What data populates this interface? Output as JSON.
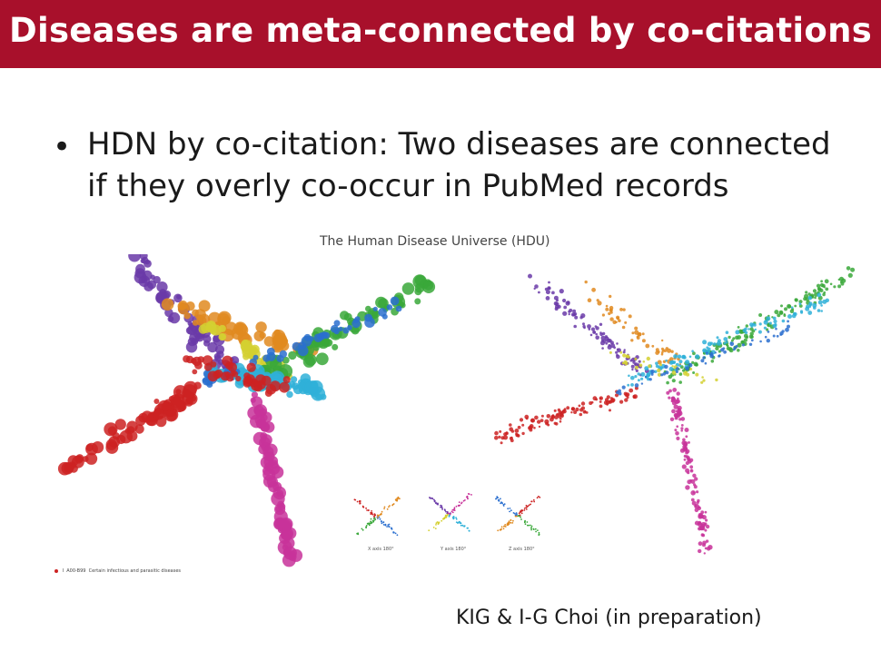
{
  "slide": {
    "title": "Diseases are meta-connected by co-citations",
    "bullet_marker": "•",
    "bullet_text": "HDN by co-citation: Two diseases are connected if they overly co-occur in PubMed records",
    "credit": "KIG & I-G Choi (in preparation)"
  },
  "figure": {
    "title": "The Human Disease Universe (HDU)",
    "legend": [
      {
        "code": "I",
        "range": "A00-B99",
        "label": "Certain infectious and parasitic diseases",
        "color": "#cc2222"
      }
    ],
    "insets": [
      {
        "label": "X axis 180°"
      },
      {
        "label": "Y axis 180°"
      },
      {
        "label": "Z axis 180°"
      }
    ]
  },
  "palette": {
    "title_bar": "#a8102b",
    "cluster_colors": [
      "#cc2222",
      "#6a3aa8",
      "#2a6fcf",
      "#2fb0d8",
      "#3aa83a",
      "#d4d030",
      "#e08a20",
      "#c8329a"
    ]
  }
}
